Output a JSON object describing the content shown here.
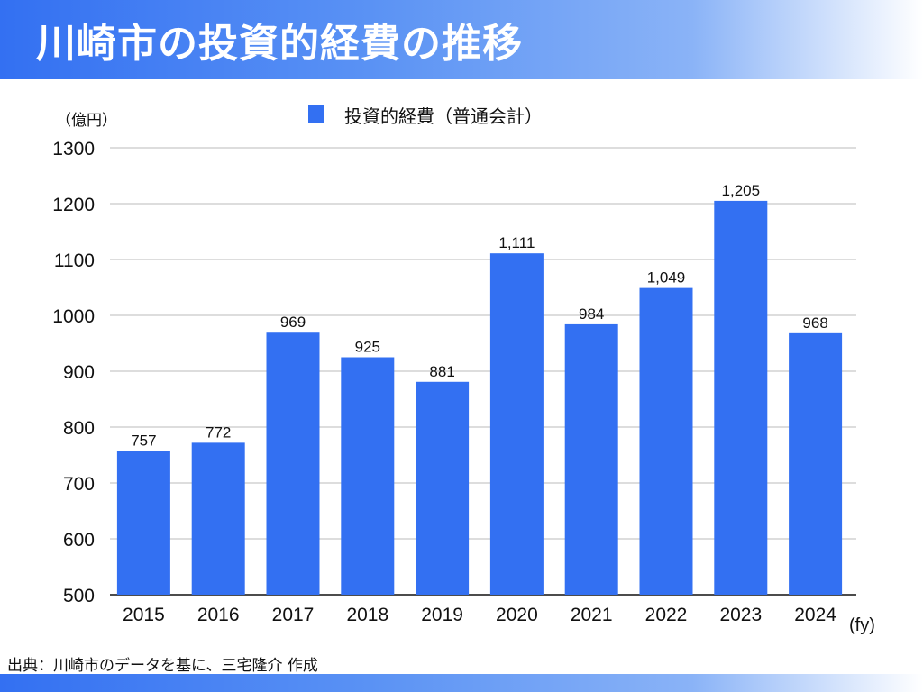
{
  "header": {
    "title": "川崎市の投資的経費の推移"
  },
  "footer": {
    "source": "出典：川崎市のデータを基に、三宅隆介 作成"
  },
  "colors": {
    "bar": "#3370f2",
    "grid": "#bbbbbb"
  },
  "chart_data": {
    "type": "bar",
    "title": "",
    "legend": [
      "投資的経費（普通会計）"
    ],
    "legend_placement": "top-center",
    "ylabel": "（億円）",
    "xlabel": "(fy)",
    "categories": [
      "2015",
      "2016",
      "2017",
      "2018",
      "2019",
      "2020",
      "2021",
      "2022",
      "2023",
      "2024"
    ],
    "values": [
      757,
      772,
      969,
      925,
      881,
      1111,
      984,
      1049,
      1205,
      968
    ],
    "data_labels": [
      "757",
      "772",
      "969",
      "925",
      "881",
      "1,111",
      "984",
      "1,049",
      "1,205",
      "968"
    ],
    "ylim": [
      500,
      1300
    ],
    "yticks": [
      "500",
      "600",
      "700",
      "800",
      "900",
      "1000",
      "1100",
      "1200",
      "1300"
    ],
    "grid": true
  }
}
